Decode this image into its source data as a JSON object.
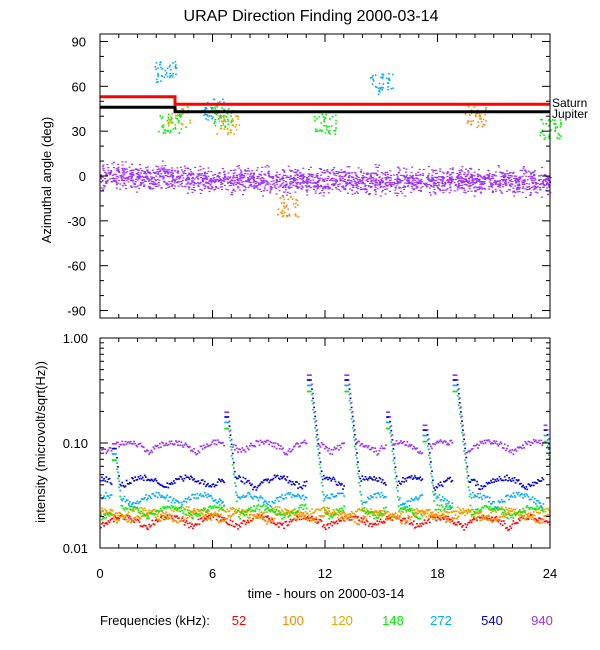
{
  "chart_data": [
    {
      "type": "scatter",
      "title": "URAP Direction Finding  2000-03-14",
      "xlabel": "",
      "ylabel": "Azimuthal angle (deg)",
      "xlim": [
        0,
        24
      ],
      "ylim": [
        -95,
        95
      ],
      "y_ticks": [
        90,
        60,
        30,
        0,
        -30,
        -60,
        -90
      ],
      "y_tick_labels": [
        "90",
        "60",
        "30",
        "0",
        "-30",
        "-60",
        "-90"
      ],
      "reference_lines": [
        {
          "name": "Saturn",
          "color": "#ff0000",
          "segments": [
            {
              "x": [
                0,
                4.0
              ],
              "y": 53
            },
            {
              "x": [
                4.0,
                24
              ],
              "y": 48
            }
          ]
        },
        {
          "name": "Jupiter",
          "color": "#000000",
          "segments": [
            {
              "x": [
                0,
                4.0
              ],
              "y": 46
            },
            {
              "x": [
                4.0,
                24
              ],
              "y": 43
            }
          ]
        }
      ],
      "series": [
        {
          "name": "940",
          "color": "#9b30ff",
          "center_y": [
            [
              0,
              0
            ],
            [
              4.5,
              0
            ],
            [
              5.0,
              -3
            ],
            [
              24,
              -3
            ]
          ],
          "spread": 5
        },
        {
          "name": "148",
          "color": "#00ee00",
          "clusters": [
            [
              3.7,
              35
            ],
            [
              6.5,
              40
            ],
            [
              12.0,
              35
            ],
            [
              24,
              32
            ]
          ]
        },
        {
          "name": "272",
          "color": "#00aaff",
          "clusters": [
            [
              3.5,
              70
            ],
            [
              6.0,
              45
            ],
            [
              15.0,
              62
            ]
          ]
        },
        {
          "name": "100",
          "color": "#ff8800",
          "clusters": [
            [
              10.0,
              -20
            ],
            [
              20.0,
              40
            ]
          ]
        },
        {
          "name": "120",
          "color": "#ddaa00",
          "clusters": [
            [
              4.2,
              40
            ],
            [
              6.8,
              35
            ]
          ]
        }
      ]
    },
    {
      "type": "line",
      "xlabel": "time - hours on 2000-03-14",
      "ylabel": "intensity (microvolt/sqrt(Hz))",
      "yscale": "log",
      "xlim": [
        0,
        24
      ],
      "ylim": [
        0.01,
        1.0
      ],
      "x_ticks": [
        0,
        6,
        12,
        18,
        24
      ],
      "x_tick_labels": [
        "0",
        "6",
        "12",
        "18",
        "24"
      ],
      "y_ticks": [
        1.0,
        0.1,
        0.01
      ],
      "y_tick_labels": [
        "1.00",
        "0.10",
        "0.01"
      ],
      "series": [
        {
          "name": "52",
          "color": "#ff0000",
          "baseline": 0.016
        },
        {
          "name": "100",
          "color": "#ff8800",
          "baseline": 0.018
        },
        {
          "name": "120",
          "color": "#ddaa00",
          "baseline": 0.019
        },
        {
          "name": "148",
          "color": "#00ee00",
          "baseline": 0.02
        },
        {
          "name": "272",
          "color": "#00aaff",
          "baseline": 0.026
        },
        {
          "name": "540",
          "color": "#0000dd",
          "baseline": 0.038
        },
        {
          "name": "940",
          "color": "#9b30ff",
          "baseline": 0.083
        }
      ],
      "spikes": [
        {
          "x": 0.8,
          "height": 0.1
        },
        {
          "x": 6.8,
          "height": 0.2
        },
        {
          "x": 11.2,
          "height": 0.45
        },
        {
          "x": 13.2,
          "height": 0.45
        },
        {
          "x": 15.4,
          "height": 0.2
        },
        {
          "x": 17.4,
          "height": 0.15
        },
        {
          "x": 19.0,
          "height": 0.45
        },
        {
          "x": 23.8,
          "height": 0.15
        }
      ]
    }
  ],
  "legend": {
    "label": "Frequencies (kHz):",
    "items": [
      {
        "label": "52",
        "color": "#ff0000"
      },
      {
        "label": "100",
        "color": "#ff8800"
      },
      {
        "label": "120",
        "color": "#ddaa00"
      },
      {
        "label": "148",
        "color": "#00ee00"
      },
      {
        "label": "272",
        "color": "#00aaff"
      },
      {
        "label": "540",
        "color": "#0000dd"
      },
      {
        "label": "940",
        "color": "#9b30ff"
      }
    ]
  }
}
